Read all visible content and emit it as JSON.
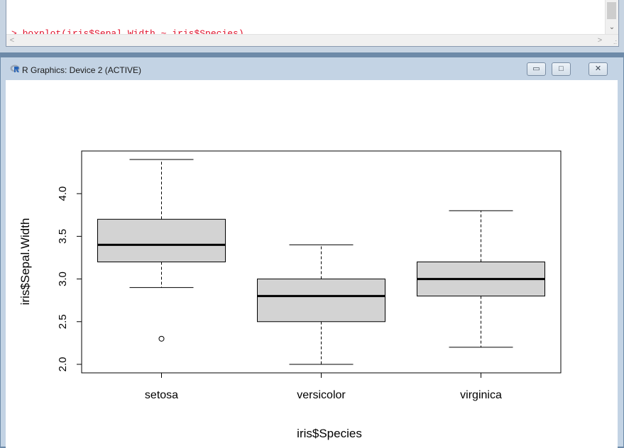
{
  "console": {
    "lines": [
      "> boxplot(iris$Sepal.Width ~ iris$Species)",
      "> "
    ],
    "text_color": "#e0102a"
  },
  "window": {
    "title": "R Graphics: Device 2 (ACTIVE)",
    "controls": {
      "minimize": "minimize-icon",
      "maximize": "maximize-icon",
      "close": "close-icon"
    }
  },
  "chart_data": {
    "type": "boxplot",
    "title": "",
    "xlabel": "iris$Species",
    "ylabel": "iris$Sepal.Width",
    "categories": [
      "setosa",
      "versicolor",
      "virginica"
    ],
    "ylim": [
      1.9,
      4.5
    ],
    "yticks": [
      2.0,
      2.5,
      3.0,
      3.5,
      4.0
    ],
    "ytick_labels": [
      "2.0",
      "2.5",
      "3.0",
      "3.5",
      "4.0"
    ],
    "boxes": [
      {
        "category": "setosa",
        "lower_whisker": 2.9,
        "q1": 3.2,
        "median": 3.4,
        "q3": 3.7,
        "upper_whisker": 4.4,
        "outliers": [
          2.3
        ]
      },
      {
        "category": "versicolor",
        "lower_whisker": 2.0,
        "q1": 2.5,
        "median": 2.8,
        "q3": 3.0,
        "upper_whisker": 3.4,
        "outliers": []
      },
      {
        "category": "virginica",
        "lower_whisker": 2.2,
        "q1": 2.8,
        "median": 3.0,
        "q3": 3.2,
        "upper_whisker": 3.8,
        "outliers": []
      }
    ],
    "box_color": "#d3d3d3"
  }
}
